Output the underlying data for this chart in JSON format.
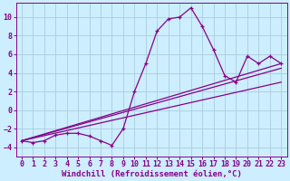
{
  "background_color": "#cceeff",
  "grid_color": "#aaccdd",
  "line_color": "#880088",
  "xlabel": "Windchill (Refroidissement éolien,°C)",
  "xlabel_fontsize": 6.5,
  "tick_fontsize": 6.0,
  "xlim": [
    -0.5,
    23.5
  ],
  "ylim": [
    -5.0,
    11.5
  ],
  "yticks": [
    -4,
    -2,
    0,
    2,
    4,
    6,
    8,
    10
  ],
  "xticks": [
    0,
    1,
    2,
    3,
    4,
    5,
    6,
    7,
    8,
    9,
    10,
    11,
    12,
    13,
    14,
    15,
    16,
    17,
    18,
    19,
    20,
    21,
    22,
    23
  ],
  "series0": [
    [
      0,
      -3.3
    ],
    [
      1,
      -3.5
    ],
    [
      2,
      -3.3
    ],
    [
      3,
      -2.7
    ],
    [
      4,
      -2.5
    ],
    [
      5,
      -2.5
    ],
    [
      6,
      -2.8
    ],
    [
      7,
      -3.3
    ],
    [
      8,
      -3.8
    ],
    [
      9,
      -2.0
    ],
    [
      10,
      2.0
    ],
    [
      11,
      5.0
    ],
    [
      12,
      8.5
    ],
    [
      13,
      9.8
    ],
    [
      14,
      10.0
    ],
    [
      15,
      11.0
    ],
    [
      16,
      9.0
    ],
    [
      17,
      6.5
    ],
    [
      18,
      3.7
    ],
    [
      19,
      3.0
    ],
    [
      20,
      5.8
    ],
    [
      21,
      5.0
    ],
    [
      22,
      5.8
    ],
    [
      23,
      5.0
    ]
  ],
  "series_linear": [
    [
      [
        0,
        -3.3
      ],
      [
        23,
        5.0
      ]
    ],
    [
      [
        0,
        -3.3
      ],
      [
        23,
        4.5
      ]
    ],
    [
      [
        0,
        -3.3
      ],
      [
        23,
        3.0
      ]
    ]
  ]
}
